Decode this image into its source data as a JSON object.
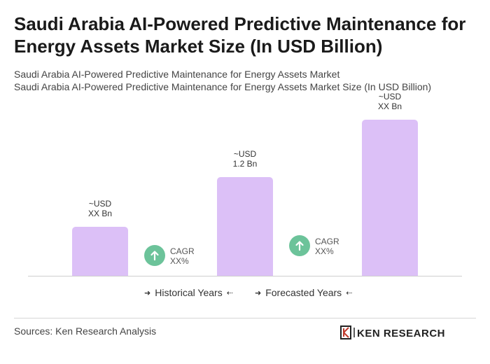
{
  "title": "Saudi Arabia AI-Powered Predictive Maintenance for Energy Assets Market Size (In USD Billion)",
  "subtitle_line1": "Saudi Arabia AI-Powered Predictive Maintenance for Energy Assets Market",
  "subtitle_line2": "Saudi Arabia AI-Powered Predictive Maintenance for Energy Assets Market Size (In USD Billion)",
  "chart_data": {
    "type": "bar",
    "title": "Saudi Arabia AI-Powered Predictive Maintenance for Energy Assets Market Size (In USD Billion)",
    "categories": [
      "",
      "",
      ""
    ],
    "values": [
      0.6,
      1.2,
      1.9
    ],
    "bar_labels": [
      {
        "line1": "~USD",
        "line2": "XX Bn"
      },
      {
        "line1": "~USD",
        "line2": "1.2 Bn"
      },
      {
        "line1": "~USD",
        "line2": "XX Bn"
      }
    ],
    "cagr": [
      {
        "line1": "CAGR",
        "line2": "XX%"
      },
      {
        "line1": "CAGR",
        "line2": "XX%"
      }
    ],
    "bar_color": "#dcc0f7",
    "cagr_color": "#6cc39a",
    "grid": false
  },
  "legend": {
    "historical": "Historical Years",
    "forecasted": "Forecasted Years"
  },
  "source": "Sources: Ken Research Analysis",
  "logo_text": "KEN RESEARCH"
}
